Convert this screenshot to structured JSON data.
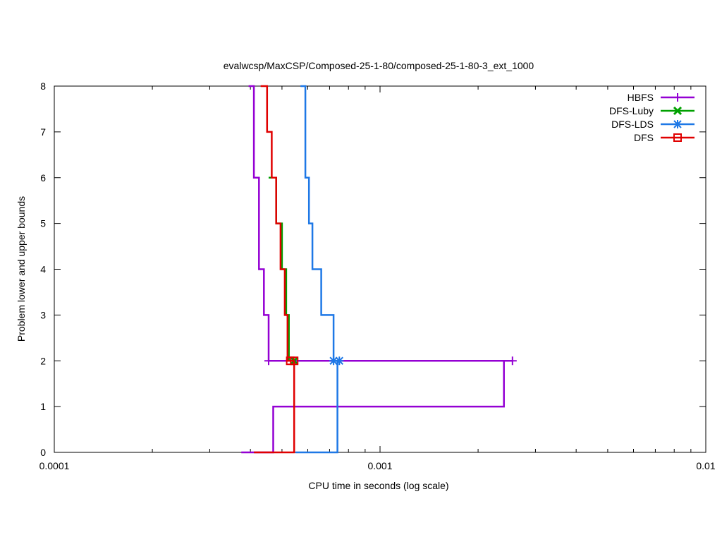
{
  "chart_data": {
    "type": "line",
    "title": "evalwcsp/MaxCSP/Composed-25-1-80/composed-25-1-80-3_ext_1000",
    "xlabel": "CPU time in seconds (log scale)",
    "ylabel": "Problem lower and upper bounds",
    "xscale": "log",
    "xlim": [
      0.0001,
      0.01
    ],
    "ylim": [
      0,
      8
    ],
    "x_ticks": [
      {
        "value": 0.0001,
        "label": "0.0001"
      },
      {
        "value": 0.001,
        "label": "0.001"
      },
      {
        "value": 0.01,
        "label": "0.01"
      }
    ],
    "y_ticks": [
      {
        "value": 0,
        "label": "0"
      },
      {
        "value": 1,
        "label": "1"
      },
      {
        "value": 2,
        "label": "2"
      },
      {
        "value": 3,
        "label": "3"
      },
      {
        "value": 4,
        "label": "4"
      },
      {
        "value": 5,
        "label": "5"
      },
      {
        "value": 6,
        "label": "6"
      },
      {
        "value": 7,
        "label": "7"
      },
      {
        "value": 8,
        "label": "8"
      }
    ],
    "legend_position": "top-right",
    "grid": false,
    "series": [
      {
        "name": "HBFS",
        "color": "#9400d3",
        "marker": "plus",
        "upper": [
          [
            0.000395,
            8
          ],
          [
            0.00041,
            8
          ],
          [
            0.00041,
            6
          ],
          [
            0.000425,
            6
          ],
          [
            0.000425,
            4
          ],
          [
            0.00044,
            4
          ],
          [
            0.00044,
            3
          ],
          [
            0.000455,
            3
          ],
          [
            0.000455,
            2
          ],
          [
            0.00255,
            2
          ]
        ],
        "lower": [
          [
            0.000375,
            0
          ],
          [
            0.00047,
            0
          ],
          [
            0.00047,
            1
          ],
          [
            0.0024,
            1
          ],
          [
            0.0024,
            2
          ]
        ],
        "marker_points": [
          [
            0.000455,
            2
          ],
          [
            0.00255,
            2
          ]
        ]
      },
      {
        "name": "DFS-Luby",
        "color": "#00a000",
        "marker": "x",
        "upper": [
          [
            0.000455,
            6
          ],
          [
            0.00048,
            6
          ],
          [
            0.00048,
            5
          ],
          [
            0.0005,
            5
          ],
          [
            0.0005,
            4
          ],
          [
            0.000515,
            4
          ],
          [
            0.000515,
            3
          ],
          [
            0.000525,
            3
          ],
          [
            0.000525,
            2
          ],
          [
            0.000545,
            2
          ]
        ],
        "lower": [],
        "marker_points": [
          [
            0.000545,
            2
          ]
        ]
      },
      {
        "name": "DFS-LDS",
        "color": "#1e78e6",
        "marker": "star",
        "upper": [
          [
            0.00057,
            8
          ],
          [
            0.00059,
            8
          ],
          [
            0.00059,
            6
          ],
          [
            0.000605,
            6
          ],
          [
            0.000605,
            5
          ],
          [
            0.00062,
            5
          ],
          [
            0.00062,
            4
          ],
          [
            0.00066,
            4
          ],
          [
            0.00066,
            3
          ],
          [
            0.00072,
            3
          ],
          [
            0.00072,
            2
          ],
          [
            0.00075,
            2
          ]
        ],
        "lower": [
          [
            0.00055,
            0
          ],
          [
            0.00074,
            0
          ],
          [
            0.00074,
            2
          ]
        ],
        "marker_points": [
          [
            0.00072,
            2
          ],
          [
            0.00075,
            2
          ]
        ]
      },
      {
        "name": "DFS",
        "color": "#e00000",
        "marker": "square",
        "upper": [
          [
            0.00043,
            8
          ],
          [
            0.00045,
            8
          ],
          [
            0.00045,
            7
          ],
          [
            0.000465,
            7
          ],
          [
            0.000465,
            6
          ],
          [
            0.00048,
            6
          ],
          [
            0.00048,
            5
          ],
          [
            0.000495,
            5
          ],
          [
            0.000495,
            4
          ],
          [
            0.00051,
            4
          ],
          [
            0.00051,
            3
          ],
          [
            0.00052,
            3
          ],
          [
            0.00052,
            2
          ],
          [
            0.000545,
            2
          ]
        ],
        "lower": [
          [
            0.00041,
            0
          ],
          [
            0.000545,
            0
          ],
          [
            0.000545,
            2
          ]
        ],
        "marker_points": [
          [
            0.00053,
            2
          ],
          [
            0.000545,
            2
          ]
        ]
      }
    ]
  }
}
